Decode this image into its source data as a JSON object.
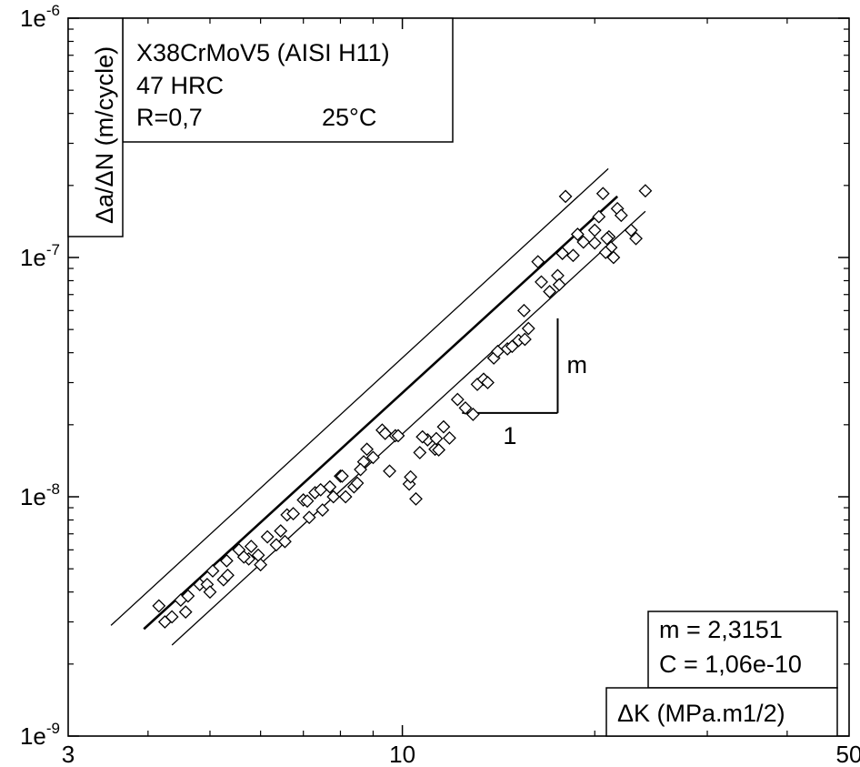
{
  "chart_data": {
    "type": "scatter",
    "x_scale": "log",
    "y_scale": "log",
    "xlim": [
      3,
      50
    ],
    "ylim": [
      1e-09,
      1e-06
    ],
    "ylabel": "Δa/ΔN (m/cycle)",
    "xlabel": "ΔK (MPa.m1/2)",
    "x_tick_labels": [
      {
        "value": 3,
        "label": "3"
      },
      {
        "value": 10,
        "label": "10"
      },
      {
        "value": 50,
        "label": "50"
      }
    ],
    "y_tick_labels": [
      {
        "value": 1e-06,
        "mant": "1e",
        "exp": "-6"
      },
      {
        "value": 1e-07,
        "mant": "1e",
        "exp": "-7"
      },
      {
        "value": 1e-08,
        "mant": "1e",
        "exp": "-8"
      },
      {
        "value": 1e-09,
        "mant": "1e",
        "exp": "-9"
      }
    ],
    "info_box": [
      "X38CrMoV5 (AISI H11)",
      "47 HRC",
      "R=0,7",
      "25°C"
    ],
    "params_box": [
      "m = 2,3151",
      "C = 1,06e-10"
    ],
    "slope_labels": {
      "run": "1",
      "rise": "m"
    },
    "fit_line": {
      "x": [
        3.94,
        21.7
      ],
      "y": [
        2.8e-09,
        1.8e-07
      ]
    },
    "upper_band": {
      "x": [
        3.5,
        21.0
      ],
      "y": [
        2.9e-09,
        2.35e-07
      ]
    },
    "lower_band": {
      "x": [
        4.36,
        24.0
      ],
      "y": [
        2.4e-09,
        1.56e-07
      ]
    },
    "slope_triangle": {
      "x": [
        12.4,
        17.5
      ],
      "y": [
        2.24e-08,
        5.57e-08
      ]
    },
    "series": [
      {
        "x": [
          4.16,
          4.25,
          4.36,
          4.5,
          4.62,
          4.58,
          4.82,
          4.95,
          5.05,
          5.0,
          5.25,
          5.31,
          5.33,
          5.55,
          5.75,
          5.8,
          5.65,
          5.95,
          6.15,
          6.0,
          6.35,
          6.6,
          6.45,
          6.55,
          6.75,
          7.0,
          7.15,
          7.1,
          7.3,
          7.5,
          7.7,
          7.45,
          7.8,
          8.0,
          8.15,
          8.4,
          8.05,
          8.5,
          8.7,
          9.0,
          8.8,
          8.6,
          9.3,
          9.55,
          9.4,
          9.75,
          9.85,
          10.25,
          10.5,
          10.3,
          10.65,
          10.95,
          11.25,
          10.75,
          11.4,
          11.3,
          11.6,
          11.85,
          12.2,
          12.55,
          12.9,
          13.1,
          13.4,
          13.6,
          13.9,
          14.1,
          14.6,
          14.85,
          15.2,
          15.55,
          15.75,
          15.5,
          16.3,
          16.5,
          17.0,
          17.5,
          17.8,
          17.6,
          18.5,
          18.8,
          19.2,
          20.3,
          20.6,
          21.05,
          21.7,
          21.2,
          20.8,
          23.2,
          22.8,
          24.0,
          20.0,
          22.0,
          18.0,
          21.4,
          20.9,
          20.0
        ],
        "y": [
          3.5e-09,
          3e-09,
          3.15e-09,
          3.7e-09,
          3.85e-09,
          3.3e-09,
          4.3e-09,
          4.3e-09,
          4.9e-09,
          4e-09,
          4.5e-09,
          5.4e-09,
          4.7e-09,
          6e-09,
          5.5e-09,
          6.2e-09,
          5.6e-09,
          5.7e-09,
          6.8e-09,
          5.2e-09,
          6.3e-09,
          8.4e-09,
          7.2e-09,
          6.5e-09,
          8.5e-09,
          9.7e-09,
          8.2e-09,
          9.6e-09,
          1.04e-08,
          8.8e-09,
          1.1e-08,
          1.07e-08,
          1e-08,
          1.22e-08,
          1e-08,
          1.1e-08,
          1.22e-08,
          1.14e-08,
          1.4e-08,
          1.46e-08,
          1.58e-08,
          1.3e-08,
          1.9e-08,
          1.28e-08,
          1.84e-08,
          1.8e-08,
          1.8e-08,
          1.13e-08,
          9.8e-09,
          1.21e-08,
          1.53e-08,
          1.73e-08,
          1.58e-08,
          1.78e-08,
          1.57e-08,
          1.75e-08,
          1.96e-08,
          1.76e-08,
          2.55e-08,
          2.35e-08,
          2.21e-08,
          2.95e-08,
          3.1e-08,
          3e-08,
          3.8e-08,
          4.05e-08,
          4.15e-08,
          4.25e-08,
          4.5e-08,
          4.55e-08,
          5.05e-08,
          6e-08,
          9.6e-08,
          7.9e-08,
          7.2e-08,
          8.4e-08,
          1.04e-07,
          7.7e-08,
          1.02e-07,
          1.25e-07,
          1.16e-07,
          1.48e-07,
          1.85e-07,
          1.22e-07,
          1.6e-07,
          1.1e-07,
          1.05e-07,
          1.2e-07,
          1.3e-07,
          1.9e-07,
          1.3e-07,
          1.5e-07,
          1.8e-07,
          1e-07,
          1.2e-07,
          1.15e-07
        ]
      }
    ],
    "colors": {
      "background": "#ffffff",
      "ink": "#000000"
    }
  }
}
